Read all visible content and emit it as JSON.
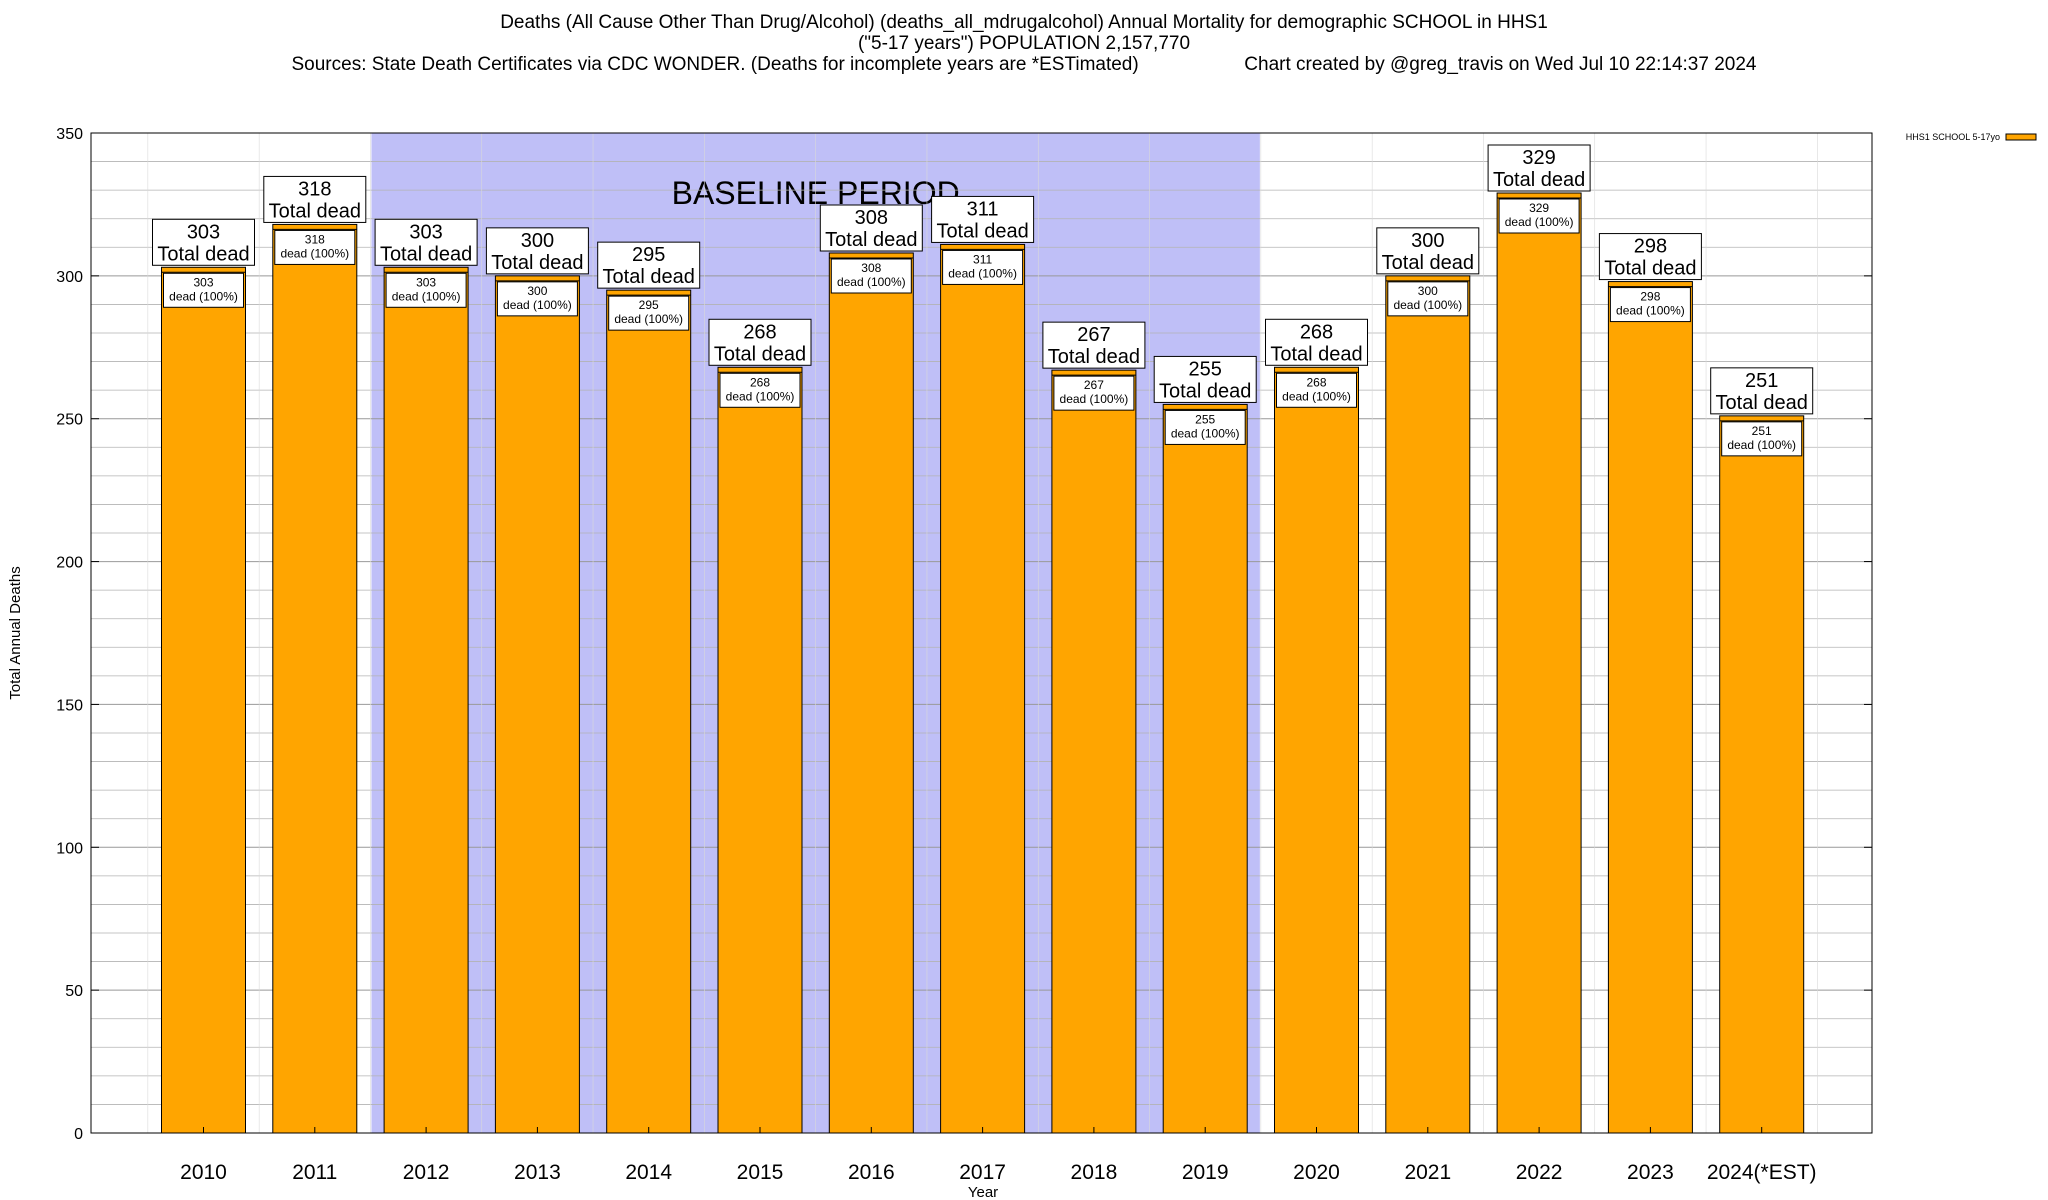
{
  "title": {
    "line1": "Deaths (All Cause Other Than Drug/Alcohol) (deaths_all_mdrugalcohol) Annual Mortality for demographic SCHOOL in HHS1",
    "line2": "(\"5-17 years\") POPULATION 2,157,770",
    "line3_left": "Sources: State Death Certificates via CDC WONDER. (Deaths for incomplete years are *ESTimated)",
    "line3_right": "Chart created by @greg_travis on Wed Jul 10 22:14:37 2024"
  },
  "colors": {
    "bar": "#ffa500",
    "bar_cap": "#ffa500",
    "baseline_band": "#bfbff7",
    "grid": "#b3b3b3"
  },
  "chart_data": {
    "type": "bar",
    "categories": [
      "2010",
      "2011",
      "2012",
      "2013",
      "2014",
      "2015",
      "2016",
      "2017",
      "2018",
      "2019",
      "2020",
      "2021",
      "2022",
      "2023",
      "2024(*EST)"
    ],
    "values": [
      303,
      318,
      303,
      300,
      295,
      268,
      308,
      311,
      267,
      255,
      268,
      300,
      329,
      298,
      251
    ],
    "xlabel": "Year",
    "ylabel": "Total Annual Deaths",
    "ylim": [
      0,
      350
    ],
    "yticks": [
      0,
      50,
      100,
      150,
      200,
      250,
      300,
      350
    ],
    "grid": true,
    "legend": {
      "position": "top-right",
      "entries": [
        "HHS1 SCHOOL 5-17yo"
      ]
    },
    "baseline_period": {
      "label": "BASELINE PERIOD",
      "start": "2012",
      "end": "2019"
    },
    "label_total_text": "Total dead",
    "label_dead_text": "dead (100%)"
  }
}
